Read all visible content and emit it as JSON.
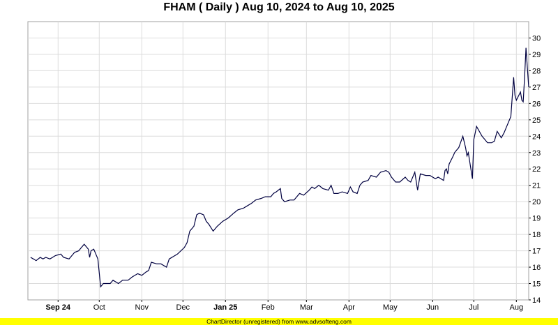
{
  "footer": "ChartDirector (unregistered) from www.advsofteng.com",
  "chart_data": {
    "type": "line",
    "title": "FHAM ( Daily ) Aug 10, 2024 to Aug 10, 2025",
    "xlabel": "",
    "ylabel": "",
    "ylim": [
      14,
      31
    ],
    "y_ticks": [
      14,
      15,
      16,
      17,
      18,
      19,
      20,
      21,
      22,
      23,
      24,
      25,
      26,
      27,
      28,
      29,
      30
    ],
    "grid": true,
    "x_range": [
      "2024-08-10",
      "2025-08-10"
    ],
    "x_ticks": [
      {
        "date": "2024-09-01",
        "label": "Sep 24",
        "bold": true
      },
      {
        "date": "2024-10-01",
        "label": "Oct",
        "bold": false
      },
      {
        "date": "2024-11-01",
        "label": "Nov",
        "bold": false
      },
      {
        "date": "2024-12-01",
        "label": "Dec",
        "bold": false
      },
      {
        "date": "2025-01-01",
        "label": "Jan 25",
        "bold": true
      },
      {
        "date": "2025-02-01",
        "label": "Feb",
        "bold": false
      },
      {
        "date": "2025-03-01",
        "label": "Mar",
        "bold": false
      },
      {
        "date": "2025-04-01",
        "label": "Apr",
        "bold": false
      },
      {
        "date": "2025-05-01",
        "label": "May",
        "bold": false
      },
      {
        "date": "2025-06-01",
        "label": "Jun",
        "bold": false
      },
      {
        "date": "2025-07-01",
        "label": "Jul",
        "bold": false
      },
      {
        "date": "2025-08-01",
        "label": "Aug",
        "bold": false
      }
    ],
    "line_color": "#000040",
    "series": [
      {
        "points": [
          [
            "2024-08-12",
            16.6
          ],
          [
            "2024-08-14",
            16.5
          ],
          [
            "2024-08-16",
            16.4
          ],
          [
            "2024-08-19",
            16.6
          ],
          [
            "2024-08-21",
            16.5
          ],
          [
            "2024-08-23",
            16.6
          ],
          [
            "2024-08-26",
            16.5
          ],
          [
            "2024-08-28",
            16.6
          ],
          [
            "2024-08-30",
            16.7
          ],
          [
            "2024-09-03",
            16.8
          ],
          [
            "2024-09-05",
            16.6
          ],
          [
            "2024-09-09",
            16.5
          ],
          [
            "2024-09-11",
            16.7
          ],
          [
            "2024-09-13",
            16.9
          ],
          [
            "2024-09-16",
            17.0
          ],
          [
            "2024-09-18",
            17.2
          ],
          [
            "2024-09-20",
            17.4
          ],
          [
            "2024-09-23",
            17.1
          ],
          [
            "2024-09-24",
            16.6
          ],
          [
            "2024-09-25",
            17.0
          ],
          [
            "2024-09-27",
            17.1
          ],
          [
            "2024-09-30",
            16.5
          ],
          [
            "2024-10-02",
            14.8
          ],
          [
            "2024-10-04",
            15.0
          ],
          [
            "2024-10-07",
            15.0
          ],
          [
            "2024-10-09",
            15.0
          ],
          [
            "2024-10-11",
            15.2
          ],
          [
            "2024-10-15",
            15.0
          ],
          [
            "2024-10-18",
            15.2
          ],
          [
            "2024-10-22",
            15.2
          ],
          [
            "2024-10-25",
            15.4
          ],
          [
            "2024-10-29",
            15.6
          ],
          [
            "2024-11-01",
            15.5
          ],
          [
            "2024-11-04",
            15.7
          ],
          [
            "2024-11-06",
            15.8
          ],
          [
            "2024-11-08",
            16.3
          ],
          [
            "2024-11-12",
            16.2
          ],
          [
            "2024-11-15",
            16.2
          ],
          [
            "2024-11-19",
            16.0
          ],
          [
            "2024-11-21",
            16.5
          ],
          [
            "2024-11-25",
            16.7
          ],
          [
            "2024-11-27",
            16.8
          ],
          [
            "2024-12-02",
            17.2
          ],
          [
            "2024-12-04",
            17.5
          ],
          [
            "2024-12-06",
            18.2
          ],
          [
            "2024-12-09",
            18.5
          ],
          [
            "2024-12-11",
            19.2
          ],
          [
            "2024-12-13",
            19.3
          ],
          [
            "2024-12-16",
            19.2
          ],
          [
            "2024-12-18",
            18.8
          ],
          [
            "2024-12-20",
            18.6
          ],
          [
            "2024-12-23",
            18.2
          ],
          [
            "2024-12-26",
            18.5
          ],
          [
            "2024-12-30",
            18.8
          ],
          [
            "2025-01-03",
            19.0
          ],
          [
            "2025-01-07",
            19.3
          ],
          [
            "2025-01-10",
            19.5
          ],
          [
            "2025-01-14",
            19.6
          ],
          [
            "2025-01-16",
            19.7
          ],
          [
            "2025-01-20",
            19.9
          ],
          [
            "2025-01-23",
            20.1
          ],
          [
            "2025-01-27",
            20.2
          ],
          [
            "2025-01-30",
            20.3
          ],
          [
            "2025-02-03",
            20.3
          ],
          [
            "2025-02-05",
            20.5
          ],
          [
            "2025-02-07",
            20.6
          ],
          [
            "2025-02-10",
            20.8
          ],
          [
            "2025-02-11",
            20.2
          ],
          [
            "2025-02-13",
            20.0
          ],
          [
            "2025-02-17",
            20.1
          ],
          [
            "2025-02-20",
            20.1
          ],
          [
            "2025-02-24",
            20.5
          ],
          [
            "2025-02-27",
            20.4
          ],
          [
            "2025-03-03",
            20.7
          ],
          [
            "2025-03-05",
            20.9
          ],
          [
            "2025-03-07",
            20.8
          ],
          [
            "2025-03-10",
            21.0
          ],
          [
            "2025-03-13",
            20.8
          ],
          [
            "2025-03-17",
            20.7
          ],
          [
            "2025-03-19",
            21.0
          ],
          [
            "2025-03-21",
            20.5
          ],
          [
            "2025-03-24",
            20.5
          ],
          [
            "2025-03-27",
            20.6
          ],
          [
            "2025-03-31",
            20.5
          ],
          [
            "2025-04-02",
            20.9
          ],
          [
            "2025-04-04",
            20.6
          ],
          [
            "2025-04-07",
            20.5
          ],
          [
            "2025-04-09",
            21.0
          ],
          [
            "2025-04-11",
            21.2
          ],
          [
            "2025-04-15",
            21.3
          ],
          [
            "2025-04-17",
            21.6
          ],
          [
            "2025-04-21",
            21.5
          ],
          [
            "2025-04-24",
            21.8
          ],
          [
            "2025-04-28",
            21.9
          ],
          [
            "2025-04-30",
            21.8
          ],
          [
            "2025-05-02",
            21.5
          ],
          [
            "2025-05-05",
            21.2
          ],
          [
            "2025-05-08",
            21.2
          ],
          [
            "2025-05-12",
            21.5
          ],
          [
            "2025-05-14",
            21.3
          ],
          [
            "2025-05-16",
            21.2
          ],
          [
            "2025-05-19",
            21.8
          ],
          [
            "2025-05-21",
            20.7
          ],
          [
            "2025-05-23",
            21.7
          ],
          [
            "2025-05-27",
            21.6
          ],
          [
            "2025-05-30",
            21.6
          ],
          [
            "2025-06-03",
            21.4
          ],
          [
            "2025-06-05",
            21.5
          ],
          [
            "2025-06-09",
            21.3
          ],
          [
            "2025-06-10",
            21.9
          ],
          [
            "2025-06-11",
            22.0
          ],
          [
            "2025-06-12",
            21.7
          ],
          [
            "2025-06-13",
            22.3
          ],
          [
            "2025-06-16",
            22.8
          ],
          [
            "2025-06-17",
            23.0
          ],
          [
            "2025-06-18",
            23.1
          ],
          [
            "2025-06-20",
            23.3
          ],
          [
            "2025-06-23",
            24.0
          ],
          [
            "2025-06-25",
            23.3
          ],
          [
            "2025-06-26",
            22.8
          ],
          [
            "2025-06-27",
            23.0
          ],
          [
            "2025-06-30",
            21.4
          ],
          [
            "2025-07-01",
            23.8
          ],
          [
            "2025-07-02",
            24.2
          ],
          [
            "2025-07-03",
            24.6
          ],
          [
            "2025-07-07",
            24.0
          ],
          [
            "2025-07-09",
            23.8
          ],
          [
            "2025-07-11",
            23.6
          ],
          [
            "2025-07-14",
            23.6
          ],
          [
            "2025-07-16",
            23.7
          ],
          [
            "2025-07-18",
            24.3
          ],
          [
            "2025-07-21",
            23.9
          ],
          [
            "2025-07-23",
            24.2
          ],
          [
            "2025-07-25",
            24.6
          ],
          [
            "2025-07-28",
            25.2
          ],
          [
            "2025-07-30",
            27.6
          ],
          [
            "2025-07-31",
            26.5
          ],
          [
            "2025-08-01",
            26.2
          ],
          [
            "2025-08-04",
            26.7
          ],
          [
            "2025-08-05",
            26.2
          ],
          [
            "2025-08-06",
            26.1
          ],
          [
            "2025-08-07",
            27.6
          ],
          [
            "2025-08-08",
            29.4
          ],
          [
            "2025-08-10",
            27.0
          ]
        ]
      }
    ]
  }
}
